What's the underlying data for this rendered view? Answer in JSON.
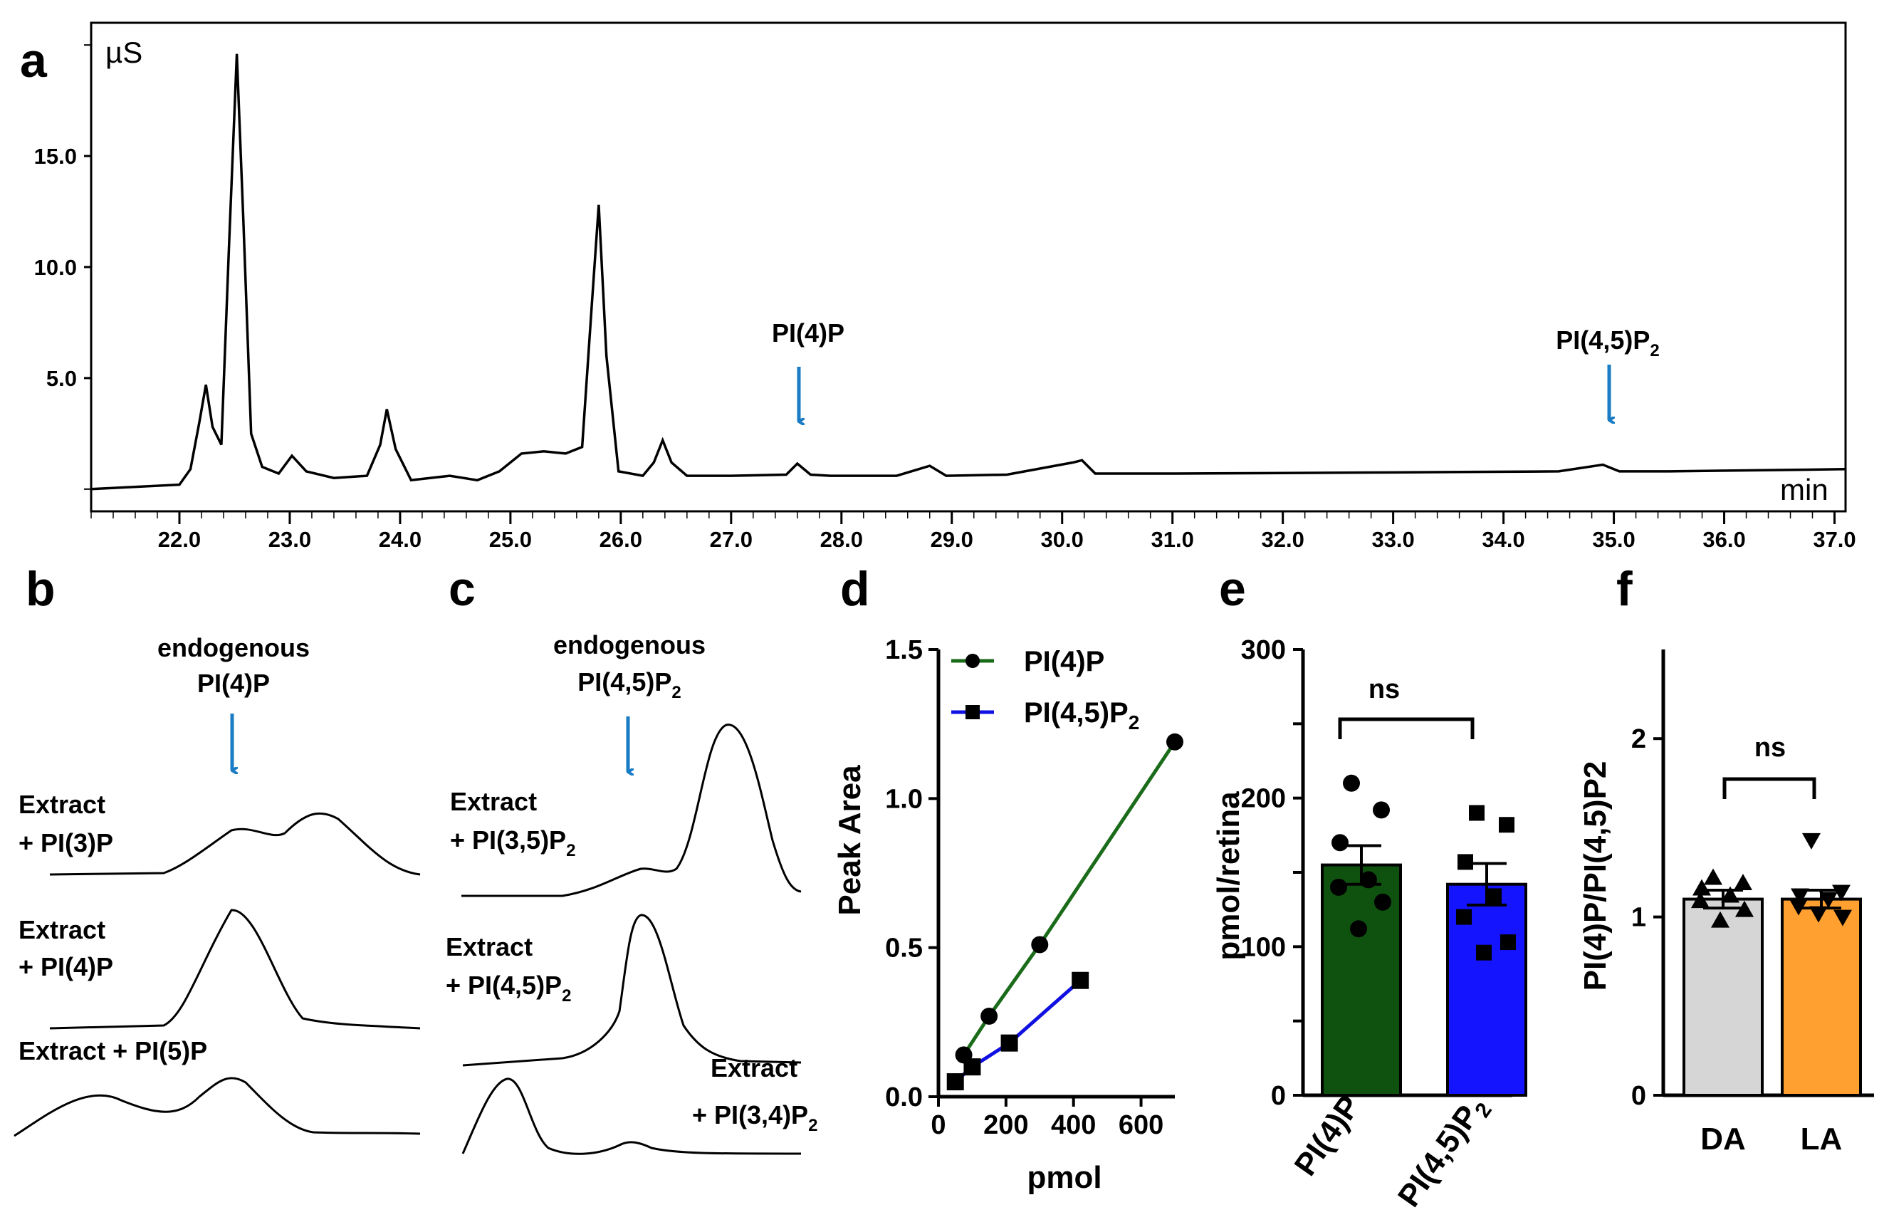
{
  "colors": {
    "arrow": "#1a7cc4",
    "pi4p_line": "#1a6b1a",
    "pi45p2_line": "#1010e0",
    "bar_green": "#0f520f",
    "bar_blue": "#1414ff",
    "bar_gray": "#d6d6d6",
    "bar_orange": "#ffa030",
    "trace": "#000000"
  },
  "panel_labels": {
    "a": "a",
    "b": "b",
    "c": "c",
    "d": "d",
    "e": "e",
    "f": "f"
  },
  "annotations": {
    "b_endogenous_line1": "endogenous",
    "b_endogenous_line2": "PI(4)P",
    "c_endogenous_line1": "endogenous",
    "c_endogenous_line2_base": "PI(4,5)P",
    "c_endogenous_line2_sub": "2",
    "extract": "Extract",
    "b_trace1_label": "+ PI(3)P",
    "b_trace2_label": "+ PI(4)P",
    "b_trace3_label": "Extract + PI(5)P",
    "c_trace1_label_base": "+ PI(3,5)P",
    "c_trace2_label_base": "+ PI(4,5)P",
    "c_trace3_label_base": "+ PI(3,4)P",
    "subscript_2": "2"
  },
  "chart_data": [
    {
      "panel": "a",
      "type": "line",
      "title": "",
      "ylabel": "µS",
      "xlabel": "min",
      "xlim": [
        21.2,
        37.1
      ],
      "ylim": [
        -1.0,
        21.0
      ],
      "xticks": [
        "22.0",
        "23.0",
        "24.0",
        "25.0",
        "26.0",
        "27.0",
        "28.0",
        "29.0",
        "30.0",
        "31.0",
        "32.0",
        "33.0",
        "34.0",
        "35.0",
        "36.0",
        "37.0"
      ],
      "yticks": [
        "5.0",
        "10.0",
        "15.0"
      ],
      "x": [
        21.2,
        22.0,
        22.1,
        22.18,
        22.24,
        22.3,
        22.38,
        22.45,
        22.52,
        22.58,
        22.65,
        22.75,
        22.9,
        23.02,
        23.15,
        23.4,
        23.7,
        23.82,
        23.88,
        23.96,
        24.1,
        24.45,
        24.7,
        24.9,
        25.1,
        25.3,
        25.5,
        25.65,
        25.74,
        25.8,
        25.87,
        25.98,
        26.2,
        26.3,
        26.38,
        26.46,
        26.6,
        27.0,
        27.5,
        27.6,
        27.72,
        27.9,
        28.5,
        28.8,
        28.95,
        29.5,
        30.1,
        30.18,
        30.3,
        31.0,
        33.0,
        34.5,
        34.9,
        35.05,
        35.5,
        37.1
      ],
      "y": [
        0.0,
        0.2,
        0.9,
        3.0,
        4.7,
        2.8,
        2.0,
        11.0,
        19.6,
        12.0,
        2.5,
        1.0,
        0.7,
        1.5,
        0.8,
        0.5,
        0.6,
        2.0,
        3.6,
        1.8,
        0.4,
        0.6,
        0.4,
        0.8,
        1.6,
        1.7,
        1.6,
        1.9,
        8.5,
        12.8,
        6.0,
        0.8,
        0.6,
        1.2,
        2.2,
        1.2,
        0.6,
        0.6,
        0.65,
        1.15,
        0.65,
        0.6,
        0.6,
        1.05,
        0.6,
        0.65,
        1.2,
        1.3,
        0.7,
        0.7,
        0.75,
        0.8,
        1.1,
        0.8,
        0.8,
        0.9
      ],
      "annotations": [
        {
          "text": "PI(4)P",
          "x": 27.6
        },
        {
          "text": "PI(4,5)P2",
          "x": 34.9
        }
      ]
    },
    {
      "panel": "d",
      "type": "line",
      "xlabel": "pmol",
      "ylabel": "Peak Area",
      "xlim": [
        0,
        700
      ],
      "ylim": [
        0,
        1.5
      ],
      "xticks": [
        "0",
        "200",
        "400",
        "600"
      ],
      "yticks": [
        "0.0",
        "0.5",
        "1.0",
        "1.5"
      ],
      "series": [
        {
          "name": "PI(4)P",
          "marker": "circle",
          "x": [
            75,
            150,
            300,
            700
          ],
          "y": [
            0.14,
            0.27,
            0.51,
            1.19
          ]
        },
        {
          "name": "PI(4,5)P2",
          "marker": "square",
          "x": [
            50,
            100,
            210,
            420
          ],
          "y": [
            0.05,
            0.1,
            0.18,
            0.39
          ]
        }
      ]
    },
    {
      "panel": "e",
      "type": "bar",
      "ylabel": "pmol/retina",
      "ylim": [
        0,
        300
      ],
      "yticks": [
        "0",
        "100",
        "200",
        "300"
      ],
      "categories": [
        "PI(4)P",
        "PI(4,5)P2"
      ],
      "values": [
        155,
        142
      ],
      "sem": [
        13,
        14
      ],
      "points": [
        [
          210,
          192,
          170,
          145,
          140,
          130,
          112
        ],
        [
          190,
          182,
          157,
          134,
          120,
          103,
          96
        ]
      ],
      "significance": "ns"
    },
    {
      "panel": "f",
      "type": "bar",
      "ylabel": "PI(4)P/PI(4,5)P2",
      "ylim": [
        0,
        2.5
      ],
      "yticks": [
        "0",
        "1",
        "2"
      ],
      "categories": [
        "DA",
        "LA"
      ],
      "values": [
        1.1,
        1.1
      ],
      "sem": [
        0.05,
        0.05
      ],
      "points": [
        [
          1.22,
          1.19,
          1.16,
          1.12,
          1.09,
          1.04,
          0.98
        ],
        [
          1.43,
          1.14,
          1.12,
          1.1,
          1.06,
          1.0,
          1.02
        ]
      ],
      "significance": "ns"
    }
  ]
}
